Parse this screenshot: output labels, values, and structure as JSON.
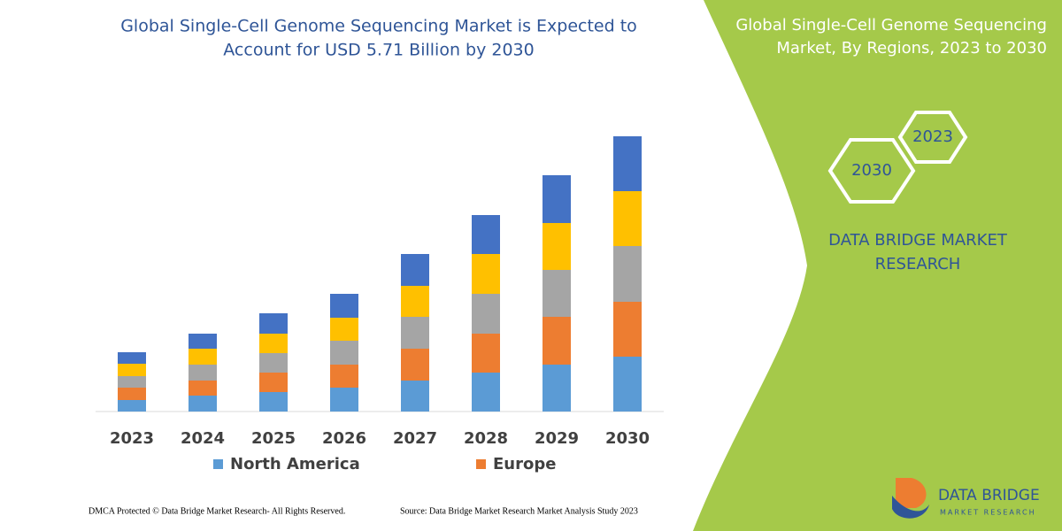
{
  "chart_data": {
    "type": "stacked_bar",
    "title": [
      "Global Single-Cell Genome Sequencing Market is Expected to",
      "Account for USD 5.71 Billion by 2030"
    ],
    "categories": [
      "2023",
      "2024",
      "2025",
      "2026",
      "2027",
      "2028",
      "2029",
      "2030"
    ],
    "series": [
      {
        "name": "North America",
        "color": "#5b9bd5",
        "values": [
          13,
          18,
          22,
          27,
          35,
          44,
          53,
          62
        ]
      },
      {
        "name": "Europe",
        "color": "#ed7d31",
        "values": [
          14,
          17,
          22,
          26,
          36,
          44,
          54,
          62
        ]
      },
      {
        "color": "#a5a5a5",
        "values": [
          13,
          18,
          22,
          27,
          36,
          45,
          53,
          63
        ]
      },
      {
        "color": "#ffc000",
        "values": [
          14,
          18,
          22,
          26,
          35,
          45,
          53,
          62
        ]
      },
      {
        "color": "#4472c4",
        "values": [
          13,
          17,
          23,
          27,
          36,
          44,
          54,
          62
        ]
      }
    ],
    "ylim": [
      0,
      320
    ]
  },
  "panel": {
    "title": [
      "Global Single-Cell Genome Sequencing",
      "Market, By Regions, 2023 to 2030"
    ],
    "hexagons": [
      "2023",
      "2030"
    ],
    "brand": [
      "DATA BRIDGE MARKET",
      "RESEARCH"
    ]
  },
  "footer": {
    "left": "DMCA Protected © Data Bridge Market Research-  All Rights Reserved.",
    "right": "Source: Data Bridge Market Research  Market Analysis Study 2023"
  },
  "logo": {
    "name": "DATA BRIDGE",
    "tagline": "MARKET RESEARCH"
  }
}
